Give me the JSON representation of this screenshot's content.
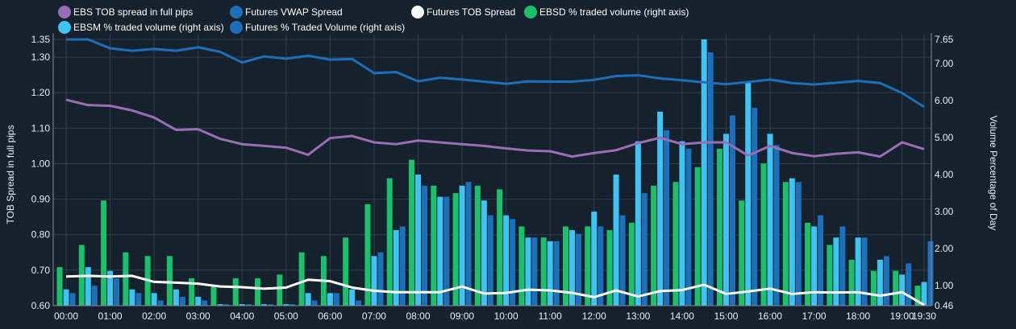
{
  "chart_data": {
    "type": "bar",
    "legend": [
      {
        "label": "EBS TOB spread in full pips",
        "color": "#9a6db5"
      },
      {
        "label": "Futures VWAP Spread",
        "color": "#1c6fb8"
      },
      {
        "label": "Futures TOB Spread",
        "color": "#ffffff"
      },
      {
        "label": "EBSD % traded volume (right axis)",
        "color": "#19c26a"
      },
      {
        "label": "EBSM % traded volume (right axis)",
        "color": "#3ec3f5"
      },
      {
        "label": "Futures % Traded Volume (right axis)",
        "color": "#1c6fb8"
      }
    ],
    "ylabel": "TOB Spread in full pips",
    "y2label": "Volume Percentage of Day",
    "ylim": [
      0.6,
      1.35
    ],
    "y2lim": [
      0.46,
      7.65
    ],
    "yticks": [
      "0.60",
      "0.70",
      "0.80",
      "0.90",
      "1.00",
      "1.10",
      "1.20",
      "1.30",
      "1.35"
    ],
    "yticks_values": [
      0.6,
      0.7,
      0.8,
      0.9,
      1.0,
      1.1,
      1.2,
      1.3,
      1.35
    ],
    "y2ticks": [
      "0.46",
      "1.00",
      "2.00",
      "3.00",
      "4.00",
      "5.00",
      "6.00",
      "7.00",
      "7.65"
    ],
    "y2ticks_values": [
      0.46,
      1.0,
      2.0,
      3.0,
      4.0,
      5.0,
      6.0,
      7.0,
      7.65
    ],
    "xticks": [
      "00:00",
      "01:00",
      "02:00",
      "03:00",
      "04:00",
      "05:00",
      "06:00",
      "07:00",
      "08:00",
      "09:00",
      "10:00",
      "11:00",
      "12:00",
      "13:00",
      "14:00",
      "15:00",
      "16:00",
      "17:00",
      "18:00",
      "19:00",
      "19:30"
    ],
    "grid": true,
    "legend_position": "top",
    "categories": [
      "00:00",
      "00:30",
      "01:00",
      "01:30",
      "02:00",
      "02:30",
      "03:00",
      "03:30",
      "04:00",
      "04:30",
      "05:00",
      "05:30",
      "06:00",
      "06:30",
      "07:00",
      "07:30",
      "08:00",
      "08:30",
      "09:00",
      "09:30",
      "10:00",
      "10:30",
      "11:00",
      "11:30",
      "12:00",
      "12:30",
      "13:00",
      "13:30",
      "14:00",
      "14:30",
      "15:00",
      "15:30",
      "16:00",
      "16:30",
      "17:00",
      "17:30",
      "18:00",
      "18:30",
      "19:00",
      "19:30"
    ],
    "series": [
      {
        "name": "EBSD % traded volume (right axis)",
        "kind": "bar",
        "axis": "right",
        "color": "#19c26a",
        "values": [
          1.5,
          2.1,
          3.3,
          1.9,
          1.8,
          1.8,
          1.2,
          1.0,
          1.2,
          1.2,
          1.3,
          1.9,
          1.8,
          2.3,
          3.2,
          3.9,
          4.4,
          3.7,
          3.5,
          3.7,
          3.6,
          2.6,
          2.3,
          2.6,
          2.6,
          2.5,
          2.7,
          3.7,
          3.8,
          4.2,
          4.7,
          3.3,
          4.3,
          3.8,
          2.7,
          2.1,
          1.7,
          1.4,
          1.4,
          1.0
        ]
      },
      {
        "name": "EBSM % traded volume (right axis)",
        "kind": "bar",
        "axis": "right",
        "color": "#3ec3f5",
        "values": [
          0.9,
          1.5,
          1.4,
          0.9,
          0.8,
          0.9,
          0.7,
          0.5,
          0.5,
          0.5,
          0.5,
          0.8,
          0.8,
          0.9,
          1.8,
          2.5,
          4.0,
          3.4,
          3.7,
          3.3,
          2.9,
          2.3,
          2.2,
          2.5,
          3.0,
          4.0,
          4.9,
          5.7,
          4.9,
          7.65,
          5.1,
          6.5,
          5.1,
          3.9,
          2.6,
          2.3,
          2.3,
          1.7,
          1.3,
          1.1
        ]
      },
      {
        "name": "Futures % Traded Volume (right axis)",
        "kind": "bar",
        "axis": "right",
        "color": "#1c6fb8",
        "values": [
          0.8,
          1.0,
          1.2,
          0.8,
          0.6,
          0.7,
          0.6,
          0.5,
          0.5,
          0.5,
          0.5,
          0.6,
          0.8,
          0.6,
          1.9,
          2.6,
          3.7,
          3.4,
          3.8,
          2.9,
          2.8,
          2.3,
          2.2,
          2.4,
          2.6,
          2.9,
          3.5,
          5.2,
          4.7,
          7.3,
          5.6,
          5.8,
          4.8,
          3.8,
          2.9,
          2.6,
          2.3,
          1.8,
          1.6,
          2.2
        ]
      },
      {
        "name": "EBS TOB spread in full pips",
        "kind": "line",
        "axis": "left",
        "color": "#9a6db5",
        "x": [
          0.0,
          0.5,
          1.0,
          1.5,
          2.0,
          2.5,
          3.0,
          3.5,
          4.0,
          4.5,
          5.0,
          5.5,
          6.0,
          6.5,
          7.0,
          7.5,
          8.0,
          8.5,
          9.0,
          9.5,
          10.0,
          10.5,
          11.0,
          11.5,
          12.0,
          12.5,
          13.0,
          13.5,
          14.0,
          14.5,
          15.0,
          15.5,
          16.0,
          16.5,
          17.0,
          17.5,
          18.0,
          18.5,
          19.0,
          19.5
        ],
        "values": [
          1.18,
          1.165,
          1.163,
          1.15,
          1.13,
          1.095,
          1.097,
          1.07,
          1.055,
          1.05,
          1.045,
          1.025,
          1.072,
          1.078,
          1.06,
          1.055,
          1.065,
          1.06,
          1.055,
          1.05,
          1.043,
          1.037,
          1.035,
          1.02,
          1.03,
          1.038,
          1.058,
          1.073,
          1.055,
          1.06,
          1.06,
          1.023,
          1.05,
          1.03,
          1.021,
          1.028,
          1.032,
          1.02,
          1.06,
          1.041
        ]
      },
      {
        "name": "Futures VWAP Spread",
        "kind": "line",
        "axis": "left",
        "color": "#1c6fb8",
        "x": [
          0.0,
          0.5,
          1.0,
          1.5,
          2.0,
          2.5,
          3.0,
          3.5,
          4.0,
          4.5,
          5.0,
          5.5,
          6.0,
          6.5,
          7.0,
          7.5,
          8.0,
          8.5,
          9.0,
          9.5,
          10.0,
          10.5,
          11.0,
          11.5,
          12.0,
          12.5,
          13.0,
          13.5,
          14.0,
          14.5,
          15.0,
          15.5,
          16.0,
          16.5,
          17.0,
          17.5,
          18.0,
          18.5,
          19.0,
          19.5
        ],
        "values": [
          1.35,
          1.35,
          1.325,
          1.318,
          1.323,
          1.318,
          1.328,
          1.315,
          1.285,
          1.302,
          1.296,
          1.304,
          1.293,
          1.295,
          1.255,
          1.258,
          1.232,
          1.242,
          1.237,
          1.231,
          1.225,
          1.232,
          1.231,
          1.231,
          1.236,
          1.247,
          1.249,
          1.24,
          1.235,
          1.229,
          1.224,
          1.23,
          1.237,
          1.227,
          1.223,
          1.228,
          1.233,
          1.227,
          1.199,
          1.16
        ]
      },
      {
        "name": "Futures TOB Spread",
        "kind": "line",
        "axis": "left",
        "color": "#ffffff",
        "x": [
          0.0,
          0.5,
          1.0,
          1.5,
          2.0,
          2.5,
          3.0,
          3.5,
          4.0,
          4.5,
          5.0,
          5.5,
          6.0,
          6.5,
          7.0,
          7.5,
          8.0,
          8.5,
          9.0,
          9.5,
          10.0,
          10.5,
          11.0,
          11.5,
          12.0,
          12.5,
          13.0,
          13.5,
          14.0,
          14.5,
          15.0,
          15.5,
          16.0,
          16.5,
          17.0,
          17.5,
          18.0,
          18.5,
          19.0,
          19.5
        ],
        "values": [
          0.682,
          0.684,
          0.682,
          0.684,
          0.667,
          0.665,
          0.662,
          0.654,
          0.652,
          0.648,
          0.651,
          0.673,
          0.669,
          0.651,
          0.642,
          0.638,
          0.638,
          0.638,
          0.654,
          0.634,
          0.636,
          0.645,
          0.643,
          0.636,
          0.624,
          0.643,
          0.626,
          0.641,
          0.644,
          0.659,
          0.633,
          0.64,
          0.648,
          0.633,
          0.638,
          0.637,
          0.638,
          0.628,
          0.638,
          0.602
        ]
      }
    ]
  }
}
